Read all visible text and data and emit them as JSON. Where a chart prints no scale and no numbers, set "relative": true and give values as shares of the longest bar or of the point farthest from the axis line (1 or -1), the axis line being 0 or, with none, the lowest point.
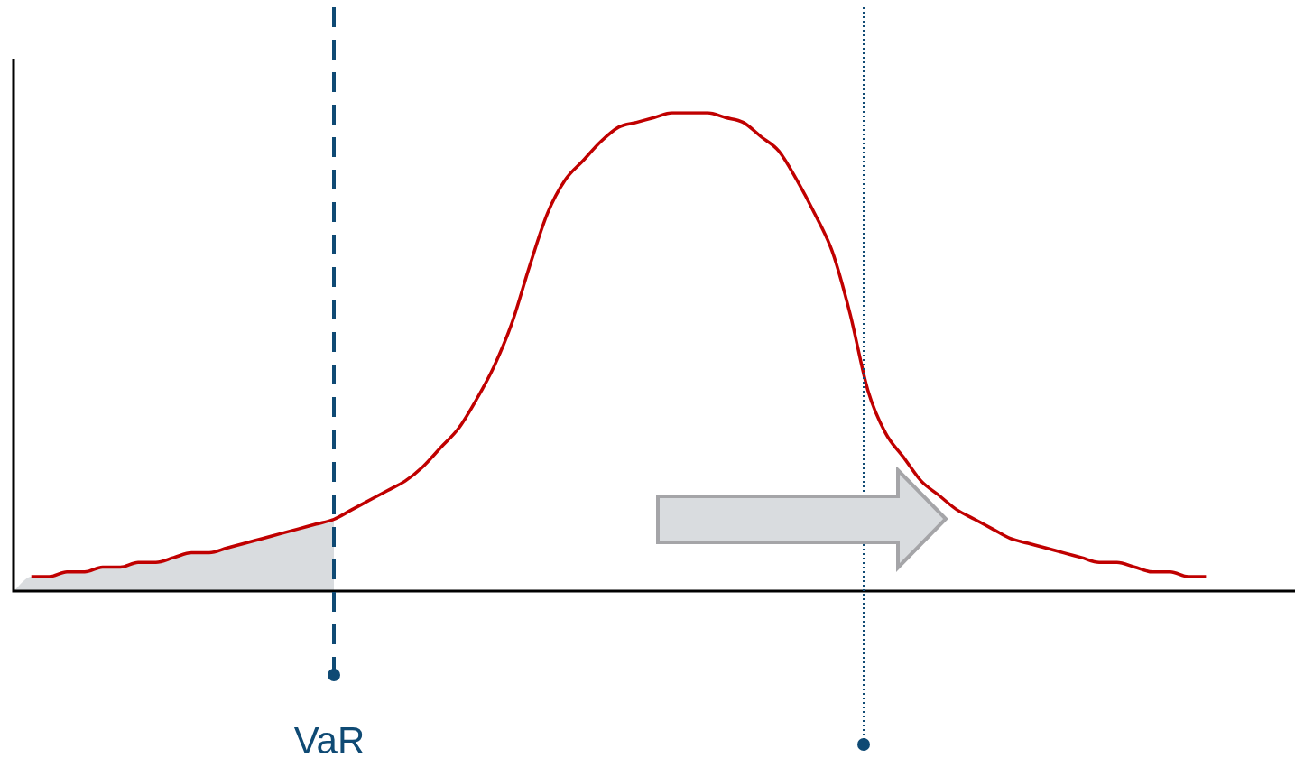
{
  "chart_data": {
    "type": "line",
    "relative": true,
    "legend": false,
    "marker": "none",
    "categories": [
      null,
      null,
      null,
      null,
      null,
      null,
      null,
      null,
      null,
      null,
      null,
      null,
      null,
      null,
      null,
      null,
      null,
      null,
      null,
      null,
      null,
      null,
      null,
      null,
      null,
      null,
      null,
      null,
      null,
      null,
      null,
      null,
      null,
      null,
      null,
      null,
      null,
      null,
      null,
      null,
      null,
      null,
      null,
      null,
      null,
      null,
      null,
      null,
      null,
      null,
      null,
      null,
      null,
      null,
      null,
      null,
      null,
      null,
      null,
      null,
      null,
      null,
      null,
      null,
      null,
      null,
      null,
      null,
      null,
      null,
      null,
      null,
      null
    ],
    "series": [
      {
        "type": "area",
        "color": "#d9dcdf",
        "values": [
          0,
          0.03,
          0.03,
          0.04,
          0.04,
          0.05,
          0.05,
          0.06,
          0.06,
          0.07,
          0.08,
          0.08,
          0.09,
          0.1,
          0.11,
          0.12,
          0.13,
          0.14,
          0.15,
          null,
          null,
          null,
          null,
          null,
          null,
          null,
          null,
          null,
          null,
          null,
          null,
          null,
          null,
          null,
          null,
          null,
          null,
          null,
          null,
          null,
          null,
          null,
          null,
          null,
          null,
          null,
          null,
          null,
          null,
          null,
          null,
          null,
          null,
          null,
          null,
          null,
          null,
          null,
          null,
          null,
          null,
          null,
          null,
          null,
          null,
          null,
          null,
          null,
          null,
          null,
          null,
          null,
          null
        ]
      },
      {
        "color": "#c00000",
        "values": [
          null,
          0.03,
          0.03,
          0.04,
          0.04,
          0.05,
          0.05,
          0.06,
          0.06,
          0.07,
          0.08,
          0.08,
          0.09,
          0.1,
          0.11,
          0.12,
          0.13,
          0.14,
          0.15,
          0.17,
          0.19,
          0.21,
          0.23,
          0.26,
          0.3,
          0.34,
          0.4,
          0.47,
          0.56,
          0.68,
          0.79,
          0.86,
          0.9,
          0.94,
          0.97,
          0.98,
          0.99,
          1,
          1,
          1,
          0.99,
          0.98,
          0.95,
          0.92,
          0.86,
          0.79,
          0.71,
          0.58,
          0.42,
          0.33,
          0.28,
          0.23,
          0.2,
          0.17,
          0.15,
          0.13,
          0.11,
          0.1,
          0.09,
          0.08,
          0.07,
          0.06,
          0.06,
          0.05,
          0.04,
          0.04,
          0.03,
          0.03,
          null,
          null,
          null,
          null,
          null
        ]
      }
    ],
    "annotations": [
      "VaR"
    ]
  }
}
